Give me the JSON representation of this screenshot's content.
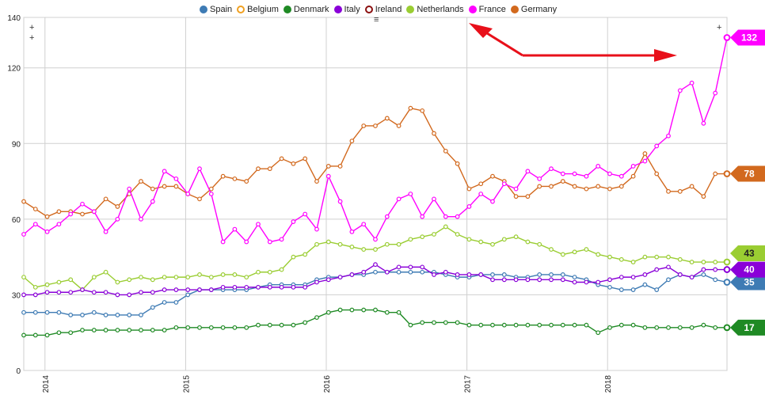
{
  "legend": [
    {
      "name": "Spain",
      "color": "#3e7bb4",
      "hollow": false
    },
    {
      "name": "Belgium",
      "color": "#f0a020",
      "hollow": true
    },
    {
      "name": "Denmark",
      "color": "#1f8a24",
      "hollow": false
    },
    {
      "name": "Italy",
      "color": "#8a00d8",
      "hollow": false
    },
    {
      "name": "Ireland",
      "color": "#8b1010",
      "hollow": true
    },
    {
      "name": "Netherlands",
      "color": "#9acd32",
      "hollow": false
    },
    {
      "name": "France",
      "color": "#ff00ff",
      "hollow": false
    },
    {
      "name": "Germany",
      "color": "#d2691e",
      "hollow": false
    }
  ],
  "icons": {
    "menu": "menu-icon",
    "zoom_handle": "plus-handle-icon",
    "annotation": "red-arrow-annotation"
  },
  "chart_data": {
    "type": "line",
    "x_range": [
      "2013-12",
      "2018-11"
    ],
    "y_range": [
      0,
      140
    ],
    "y_ticks": [
      0,
      30,
      60,
      90,
      120,
      140
    ],
    "x_ticks": [
      "2014",
      "2015",
      "2016",
      "2017",
      "2018"
    ],
    "grid": true,
    "legend_position": "top",
    "series": [
      {
        "name": "Germany",
        "color": "#d2691e",
        "end_label": "78",
        "values": [
          67,
          64,
          61,
          63,
          63,
          62,
          63,
          68,
          65,
          70,
          75,
          72,
          73,
          73,
          70,
          68,
          72,
          77,
          76,
          75,
          80,
          80,
          84,
          82,
          84,
          75,
          81,
          81,
          91,
          97,
          97,
          100,
          97,
          104,
          103,
          94,
          87,
          82,
          72,
          74,
          77,
          75,
          69,
          69,
          73,
          73,
          75,
          73,
          72,
          73,
          72,
          73,
          77,
          86,
          78,
          71,
          71,
          73,
          69,
          78,
          78
        ],
        "markers": [
          1,
          1,
          1,
          1,
          1,
          1,
          1,
          1,
          1,
          1,
          1,
          1,
          1,
          1,
          1,
          1,
          1,
          1,
          1,
          1,
          1,
          1,
          1,
          1,
          1,
          1,
          1,
          1,
          1,
          1,
          1,
          1,
          1,
          1,
          1,
          1,
          1,
          1,
          1,
          1,
          1,
          1,
          1,
          1,
          1,
          1,
          1,
          1,
          1,
          1,
          1,
          1,
          1,
          1,
          1,
          1,
          1,
          1,
          1,
          1,
          1
        ]
      },
      {
        "name": "France",
        "color": "#ff00ff",
        "end_label": "132",
        "values": [
          54,
          58,
          55,
          58,
          62,
          66,
          63,
          55,
          60,
          72,
          60,
          67,
          79,
          76,
          70,
          80,
          70,
          51,
          56,
          51,
          58,
          51,
          52,
          59,
          62,
          56,
          77,
          67,
          55,
          58,
          52,
          61,
          68,
          70,
          61,
          68,
          61,
          61,
          65,
          70,
          67,
          74,
          72,
          79,
          76,
          80,
          78,
          78,
          77,
          81,
          78,
          77,
          81,
          83,
          89,
          93,
          111,
          114,
          98,
          110,
          132
        ],
        "markers": [
          1,
          1,
          1,
          1,
          1,
          1,
          1,
          1,
          1,
          1,
          1,
          1,
          1,
          1,
          1,
          1,
          1,
          1,
          1,
          1,
          1,
          1,
          1,
          1,
          1,
          1,
          1,
          1,
          1,
          1,
          1,
          1,
          1,
          1,
          1,
          1,
          1,
          1,
          1,
          1,
          1,
          1,
          1,
          1,
          1,
          1,
          1,
          1,
          1,
          1,
          1,
          1,
          1,
          1,
          1,
          1,
          1,
          1,
          1,
          1,
          1
        ]
      },
      {
        "name": "Netherlands",
        "color": "#9acd32",
        "end_label": "43",
        "values": [
          37,
          33,
          34,
          35,
          36,
          32,
          37,
          39,
          35,
          36,
          37,
          36,
          37,
          37,
          37,
          38,
          37,
          38,
          38,
          37,
          39,
          39,
          40,
          45,
          46,
          50,
          51,
          50,
          49,
          48,
          48,
          50,
          50,
          52,
          53,
          54,
          57,
          54,
          52,
          51,
          50,
          52,
          53,
          51,
          50,
          48,
          46,
          47,
          48,
          46,
          45,
          44,
          43,
          45,
          45,
          45,
          44,
          43,
          43,
          43,
          43
        ],
        "markers": [
          1,
          1,
          1,
          1,
          1,
          1,
          1,
          1,
          1,
          1,
          1,
          1,
          1,
          1,
          1,
          1,
          1,
          1,
          1,
          1,
          1,
          1,
          1,
          1,
          1,
          1,
          1,
          1,
          1,
          1,
          1,
          1,
          1,
          1,
          1,
          1,
          1,
          1,
          1,
          1,
          1,
          1,
          1,
          1,
          1,
          1,
          1,
          1,
          1,
          1,
          1,
          1,
          1,
          1,
          1,
          1,
          1,
          1,
          1,
          1,
          1
        ]
      },
      {
        "name": "Spain",
        "color": "#3e7bb4",
        "end_label": "35",
        "values": [
          23,
          23,
          23,
          23,
          22,
          22,
          23,
          22,
          22,
          22,
          22,
          25,
          27,
          27,
          30,
          32,
          32,
          32,
          32,
          32,
          33,
          34,
          34,
          34,
          34,
          36,
          37,
          37,
          38,
          38,
          39,
          39,
          39,
          39,
          39,
          39,
          38,
          37,
          37,
          38,
          38,
          38,
          37,
          37,
          38,
          38,
          38,
          37,
          36,
          34,
          33,
          32,
          32,
          34,
          32,
          36,
          38,
          37,
          38,
          36,
          35
        ],
        "markers": [
          1,
          1,
          1,
          1,
          1,
          1,
          1,
          1,
          1,
          1,
          1,
          1,
          1,
          1,
          1,
          1,
          1,
          1,
          1,
          1,
          1,
          1,
          1,
          1,
          1,
          1,
          1,
          1,
          1,
          1,
          1,
          1,
          1,
          1,
          1,
          1,
          1,
          1,
          1,
          1,
          1,
          1,
          1,
          1,
          1,
          1,
          1,
          1,
          1,
          1,
          1,
          1,
          1,
          1,
          1,
          1,
          1,
          1,
          1,
          1,
          1
        ]
      },
      {
        "name": "Italy",
        "color": "#8a00d8",
        "end_label": "40",
        "values": [
          30,
          30,
          31,
          31,
          31,
          32,
          31,
          31,
          30,
          30,
          31,
          31,
          32,
          32,
          32,
          32,
          32,
          33,
          33,
          33,
          33,
          33,
          33,
          33,
          33,
          35,
          36,
          37,
          38,
          39,
          42,
          39,
          41,
          41,
          41,
          38,
          39,
          38,
          38,
          38,
          36,
          36,
          36,
          36,
          36,
          36,
          36,
          35,
          35,
          35,
          36,
          37,
          37,
          38,
          40,
          41,
          38,
          37,
          40,
          40,
          40
        ],
        "markers": [
          1,
          1,
          1,
          1,
          1,
          1,
          1,
          1,
          1,
          1,
          1,
          1,
          1,
          1,
          1,
          1,
          1,
          1,
          1,
          1,
          1,
          1,
          1,
          1,
          1,
          1,
          1,
          1,
          1,
          1,
          1,
          1,
          1,
          1,
          1,
          1,
          1,
          1,
          1,
          1,
          1,
          1,
          1,
          1,
          1,
          1,
          1,
          1,
          1,
          1,
          1,
          1,
          1,
          1,
          1,
          1,
          1,
          1,
          1,
          1,
          1
        ]
      },
      {
        "name": "Denmark",
        "color": "#1f8a24",
        "end_label": "17",
        "values": [
          14,
          14,
          14,
          15,
          15,
          16,
          16,
          16,
          16,
          16,
          16,
          16,
          16,
          17,
          17,
          17,
          17,
          17,
          17,
          17,
          18,
          18,
          18,
          18,
          19,
          21,
          23,
          24,
          24,
          24,
          24,
          23,
          23,
          18,
          19,
          19,
          19,
          19,
          18,
          18,
          18,
          18,
          18,
          18,
          18,
          18,
          18,
          18,
          18,
          15,
          17,
          18,
          18,
          17,
          17,
          17,
          17,
          17,
          18,
          17,
          17
        ],
        "markers": [
          1,
          1,
          1,
          1,
          1,
          1,
          1,
          1,
          1,
          1,
          1,
          1,
          1,
          1,
          1,
          1,
          1,
          1,
          1,
          1,
          1,
          1,
          1,
          1,
          1,
          1,
          1,
          1,
          1,
          1,
          1,
          1,
          1,
          1,
          1,
          1,
          1,
          1,
          1,
          1,
          1,
          1,
          1,
          1,
          1,
          1,
          1,
          1,
          1,
          1,
          1,
          1,
          1,
          1,
          1,
          1,
          1,
          1,
          1,
          1,
          1
        ]
      }
    ]
  }
}
